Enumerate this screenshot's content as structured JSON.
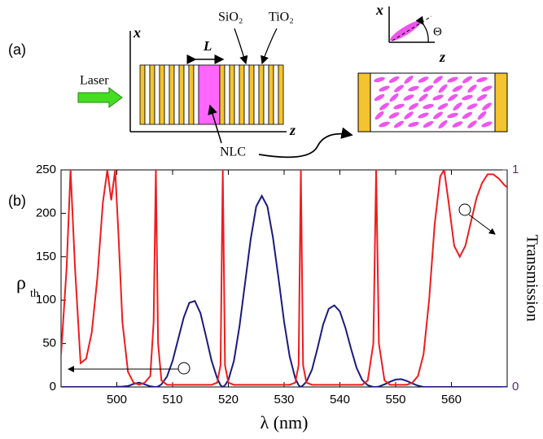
{
  "diagram": {
    "panel_a": "(a)",
    "panel_b": "(b)",
    "axis_x": "x",
    "axis_z": "z",
    "length": "L",
    "layer1": "SiO₂",
    "layer2": "TiO₂",
    "laser": "Laser",
    "nlc": "NLC",
    "inset_x": "x",
    "inset_z": "z",
    "angle": "Θ"
  },
  "chart_data": {
    "type": "line",
    "xlabel": "λ (nm)",
    "ylabel": {
      "main": "ρ",
      "sub": "th"
    },
    "y2label": "Transmission",
    "xlim": [
      490,
      570
    ],
    "xticks": [
      500,
      510,
      520,
      530,
      540,
      550,
      560
    ],
    "ylim": [
      0,
      250
    ],
    "yticks": [
      0,
      50,
      100,
      150,
      200,
      250
    ],
    "y2lim": [
      0,
      1
    ],
    "y2ticks": [
      0,
      1
    ],
    "x": [
      490,
      491,
      491.7,
      492.5,
      493.5,
      494.5,
      495.5,
      496.5,
      497.5,
      498.3,
      499,
      499.7,
      500.3,
      501,
      502,
      503,
      504,
      505,
      506,
      506.6,
      507,
      507.4,
      508,
      509,
      510,
      511,
      512,
      513,
      514,
      515,
      516,
      517,
      518,
      518.6,
      519,
      519.4,
      520,
      521,
      522,
      523,
      524,
      525,
      526,
      527,
      528,
      529,
      530,
      531,
      532,
      532.6,
      533,
      533.4,
      534,
      535,
      536,
      537,
      538,
      539,
      540,
      541,
      542,
      543,
      544,
      545,
      546,
      546.5,
      547,
      548,
      549,
      550,
      551,
      552,
      553,
      554,
      555,
      556,
      557,
      558,
      558.7,
      559.5,
      560.5,
      561.5,
      562.5,
      563.5,
      564.5,
      565.5,
      566.5,
      567.5,
      568.5,
      569.5,
      570
    ],
    "series": [
      {
        "name": "ρth",
        "color": "#1a1a80",
        "axis": "y",
        "values": [
          0,
          0,
          0,
          0,
          0,
          0,
          0,
          0,
          0,
          0,
          0,
          0,
          0.3,
          0.5,
          1,
          3.5,
          5,
          3,
          0.8,
          0.2,
          0,
          0.5,
          3,
          12,
          30,
          55,
          80,
          97,
          99,
          85,
          58,
          30,
          10,
          2,
          0,
          2,
          8,
          30,
          70,
          120,
          170,
          208,
          220,
          208,
          172,
          125,
          75,
          35,
          10,
          2,
          0,
          2,
          6,
          20,
          45,
          72,
          90,
          94,
          87,
          68,
          44,
          22,
          8,
          2,
          0,
          0,
          0.5,
          3,
          6,
          8.5,
          9,
          7,
          4,
          1.5,
          0,
          0,
          0,
          0,
          0,
          0,
          0,
          0,
          0,
          0,
          0,
          0,
          0,
          0,
          0,
          0,
          0
        ]
      },
      {
        "name": "Transmission",
        "color": "#ee1c1c",
        "axis": "y2",
        "values": [
          0.15,
          0.55,
          1.0,
          0.55,
          0.11,
          0.13,
          0.25,
          0.5,
          0.85,
          1.0,
          0.86,
          1.0,
          0.7,
          0.3,
          0.07,
          0.02,
          0.01,
          0.02,
          0.05,
          0.3,
          1.0,
          0.2,
          0.03,
          0.01,
          0.01,
          0.01,
          0.01,
          0.01,
          0.01,
          0.01,
          0.01,
          0.01,
          0.02,
          0.1,
          1.0,
          0.1,
          0.02,
          0.01,
          0.01,
          0.01,
          0.01,
          0.01,
          0.01,
          0.01,
          0.01,
          0.01,
          0.01,
          0.01,
          0.02,
          0.1,
          1.0,
          0.1,
          0.02,
          0.01,
          0.01,
          0.01,
          0.01,
          0.01,
          0.01,
          0.01,
          0.01,
          0.01,
          0.01,
          0.03,
          0.2,
          1.0,
          0.2,
          0.03,
          0.01,
          0.01,
          0.01,
          0.01,
          0.02,
          0.05,
          0.15,
          0.4,
          0.75,
          0.97,
          1.0,
          0.85,
          0.65,
          0.6,
          0.65,
          0.76,
          0.87,
          0.94,
          0.98,
          0.98,
          0.96,
          0.93,
          0.92
        ]
      }
    ]
  }
}
